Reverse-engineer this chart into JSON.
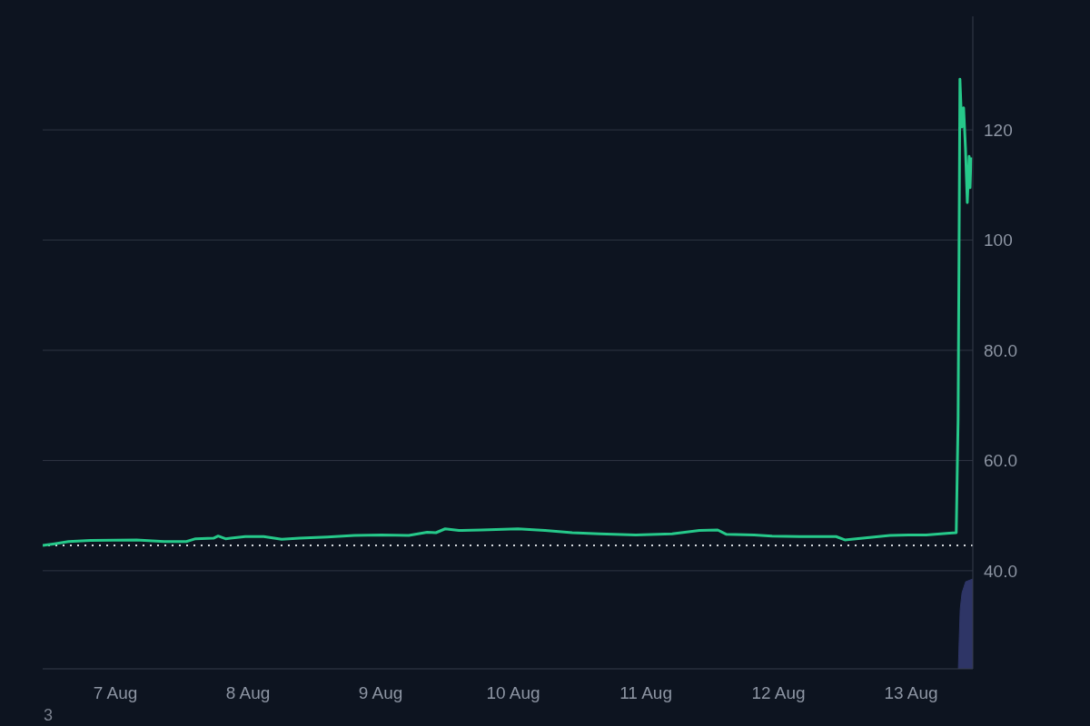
{
  "chart_data": {
    "type": "line",
    "xlim": [
      "--08-06T10:50",
      "--08-13T11:10"
    ],
    "xticks": [
      {
        "value": "--08-07",
        "label": "7 Aug"
      },
      {
        "value": "--08-08",
        "label": "8 Aug"
      },
      {
        "value": "--08-09",
        "label": "9 Aug"
      },
      {
        "value": "--08-10",
        "label": "10 Aug"
      },
      {
        "value": "--08-11",
        "label": "11 Aug"
      },
      {
        "value": "--08-12",
        "label": "12 Aug"
      },
      {
        "value": "--08-13",
        "label": "13 Aug"
      }
    ],
    "ylim": [
      22.2,
      140.6
    ],
    "yticks": [
      {
        "value": 40,
        "label": "40.0"
      },
      {
        "value": 60,
        "label": "60.0"
      },
      {
        "value": 80,
        "label": "80.0"
      },
      100,
      120
    ],
    "grid": "y",
    "marker": "none",
    "line_style": "solid",
    "ref_lines": [
      {
        "axis": "y",
        "value": 44.6,
        "color": "#d8dbe0",
        "line_style": "dotted"
      }
    ],
    "annotations": [
      "3"
    ],
    "series": [
      {
        "color": "#26c98a",
        "x": [
          "--08-06T10:50",
          "--08-06T13:00",
          "--08-06T15:30",
          "--08-06T19:30",
          "--08-07T03:50",
          "--08-07T08:50",
          "--08-07T12:50",
          "--08-07T14:30",
          "--08-07T17:45",
          "--08-07T18:35",
          "--08-07T19:55",
          "--08-07T23:30",
          "--08-08T02:50",
          "--08-08T06:05",
          "--08-08T09:20",
          "--08-08T14:20",
          "--08-08T19:15",
          "--08-09T00:10",
          "--08-09T05:05",
          "--08-09T08:25",
          "--08-09T10:00",
          "--08-09T11:40",
          "--08-09T14:10",
          "--08-09T18:15",
          "--08-10T00:50",
          "--08-10T05:45",
          "--08-10T10:40",
          "--08-10T15:35",
          "--08-10T22:10",
          "--08-11T04:45",
          "--08-11T09:40",
          "--08-11T13:00",
          "--08-11T14:35",
          "--08-11T19:35",
          "--08-11T22:50",
          "--08-12T03:50",
          "--08-12T10:25",
          "--08-12T12:00",
          "--08-12T15:15",
          "--08-12T20:10",
          "--08-12T23:30",
          "--08-13T02:45",
          "--08-13T06:55",
          "--08-13T08:10",
          "--08-13T08:30",
          "--08-13T08:40",
          "--08-13T08:50",
          "--08-13T09:10",
          "--08-13T09:30",
          "--08-13T09:50",
          "--08-13T10:10",
          "--08-13T10:30",
          "--08-13T10:40",
          "--08-13T10:50"
        ],
        "values": [
          44.6,
          44.9,
          45.3,
          45.5,
          45.6,
          45.3,
          45.3,
          45.8,
          45.9,
          46.3,
          45.8,
          46.2,
          46.2,
          45.7,
          45.9,
          46.1,
          46.4,
          46.5,
          46.4,
          47.0,
          46.9,
          47.6,
          47.3,
          47.4,
          47.6,
          47.3,
          46.9,
          46.7,
          46.5,
          46.7,
          47.3,
          47.4,
          46.6,
          46.5,
          46.3,
          46.2,
          46.2,
          45.6,
          45.9,
          46.4,
          46.5,
          46.5,
          46.8,
          46.9,
          67.5,
          97,
          129.2,
          120.5,
          124,
          116.7,
          106.8,
          115.2,
          109.5,
          115
        ]
      },
      {
        "type": "area",
        "color": "#2e3566",
        "x": [
          "--08-13T08:33",
          "--08-13T08:43",
          "--08-13T08:53",
          "--08-13T09:13",
          "--08-13T09:52",
          "--08-13T11:10"
        ],
        "values": [
          22.2,
          28,
          33,
          36,
          38,
          38.5
        ]
      }
    ]
  }
}
